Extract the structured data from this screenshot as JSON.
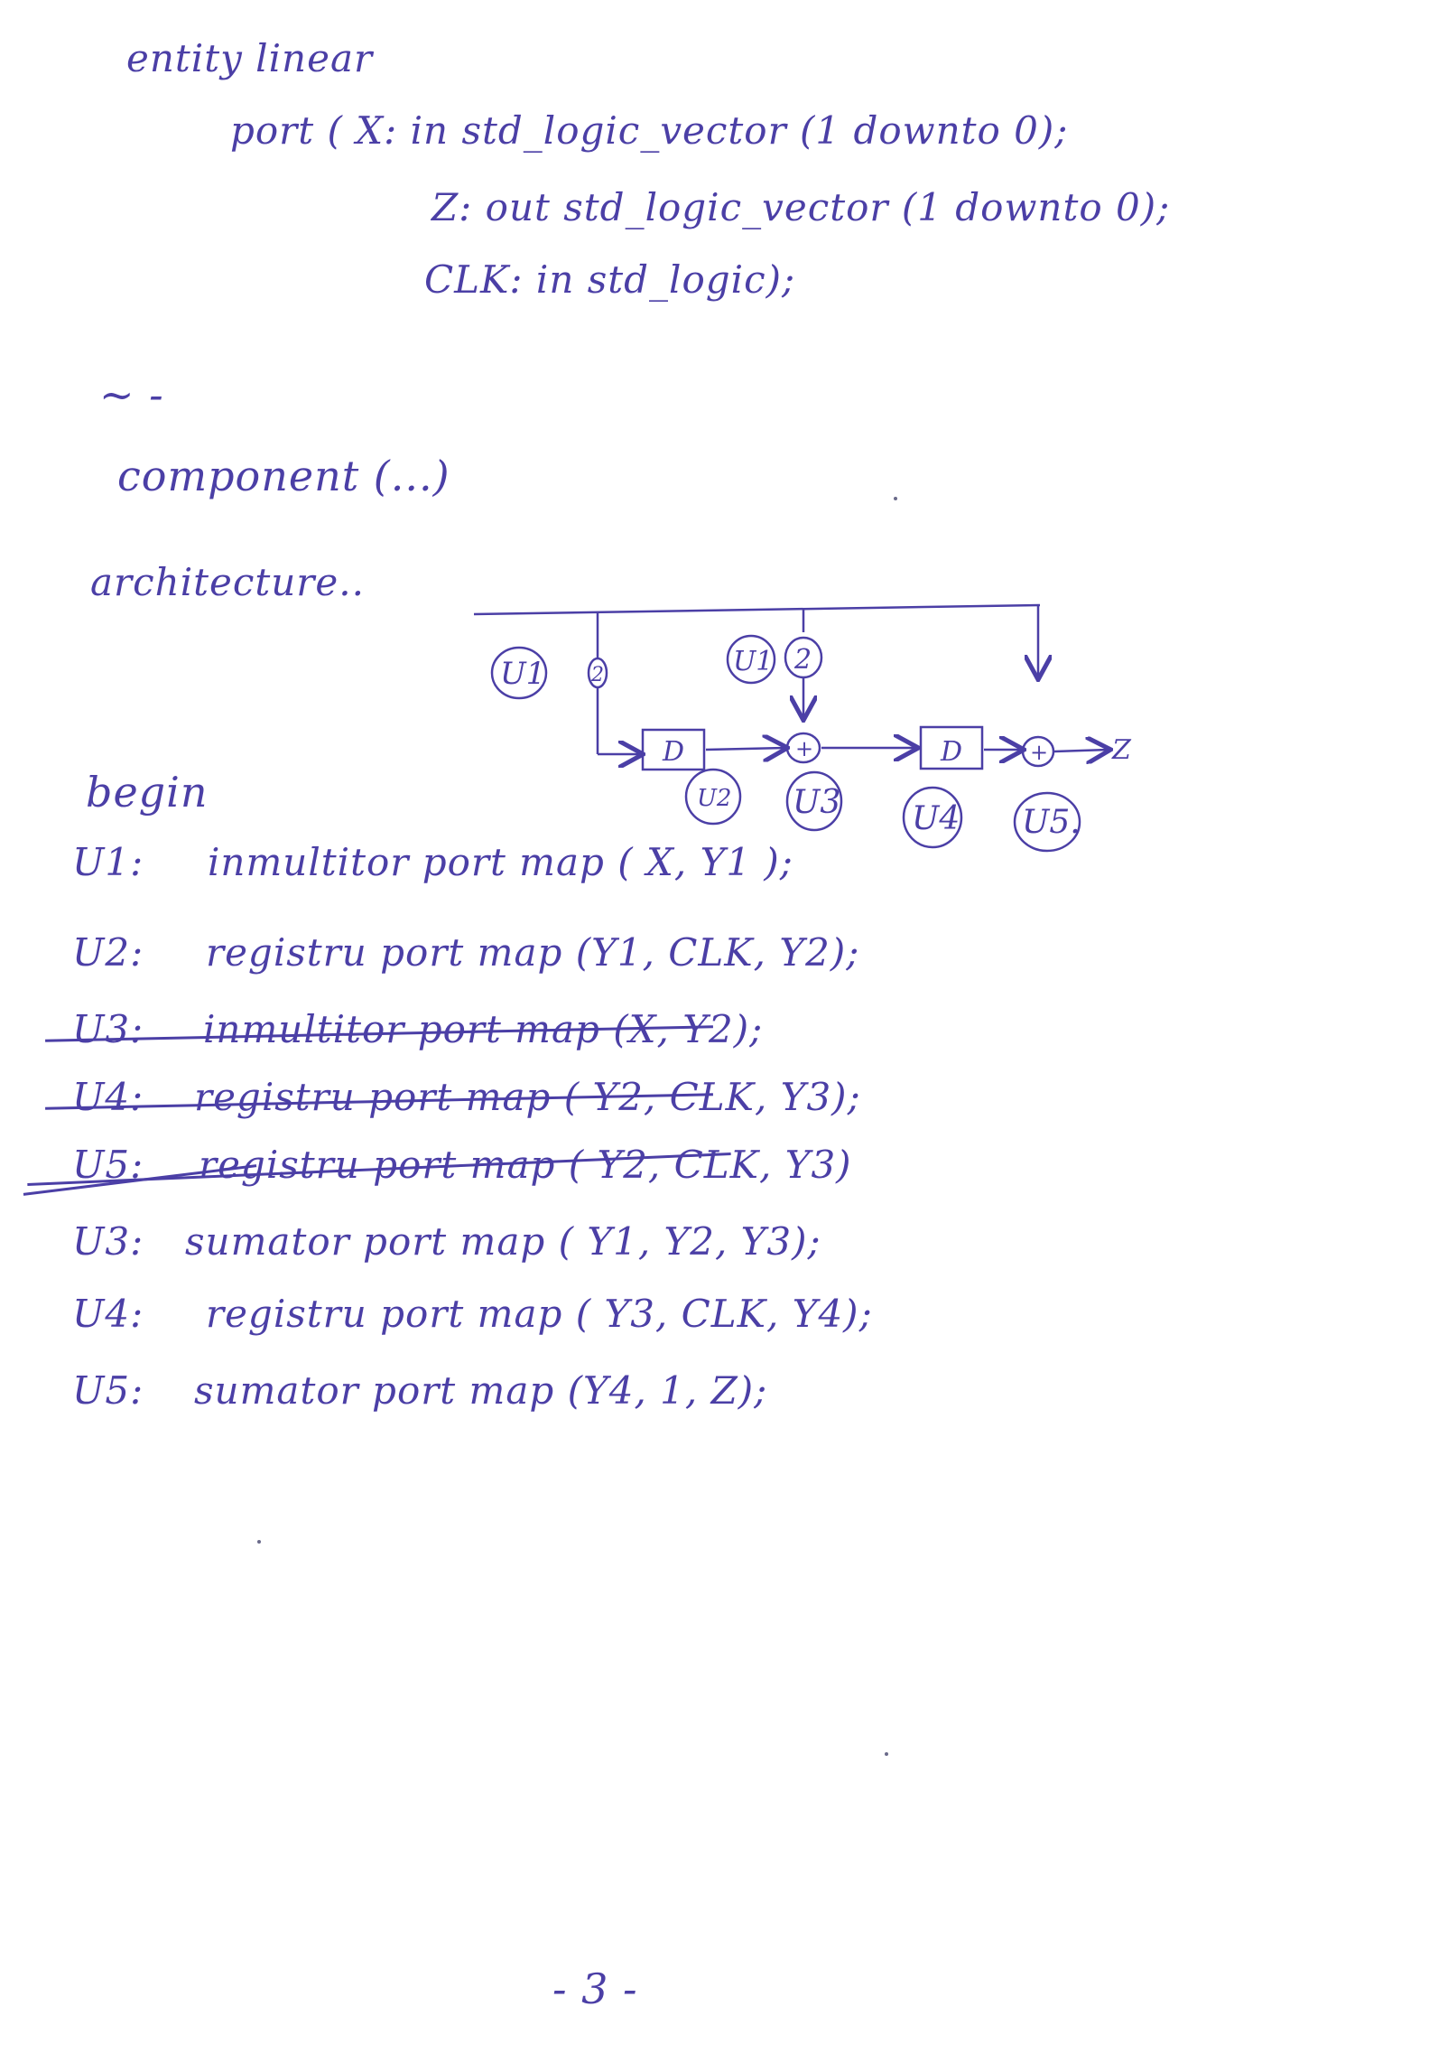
{
  "entity": {
    "line1": "entity linear",
    "port_x": "port ( X: in std_logic_vector (1 downto 0);",
    "port_z": "Z: out std_logic_vector (1 downto 0);",
    "port_clk": "CLK: in std_logic);"
  },
  "dashes": "~ -",
  "component": "component (...)",
  "architecture": "architecture..",
  "begin": "begin",
  "statements": [
    {
      "label": "U1:",
      "text": "inmultitor port map ( X, Y1 );",
      "struck": false
    },
    {
      "label": "U2:",
      "text": "registru port map (Y1, CLK, Y2);",
      "struck": false
    },
    {
      "label": "U3:",
      "text": "inmultitor port map (X, Y2);",
      "struck": true
    },
    {
      "label": "U4:",
      "text": "registru port map ( Y2, CLK, Y3);",
      "struck": true
    },
    {
      "label": "U5:",
      "text": "registru port map ( Y2, CLK, Y3)",
      "struck": true
    },
    {
      "label": "U3:",
      "text": "sumator port map ( Y1, Y2, Y3);",
      "struck": false
    },
    {
      "label": "U4:",
      "text": "registru port map ( Y3, CLK, Y4);",
      "struck": false
    },
    {
      "label": "U5:",
      "text": "sumator port map (Y4, 1, Z);",
      "struck": false
    }
  ],
  "diagram": {
    "u1_label": "U1",
    "u1_mult": "2",
    "u1_alt_label": "U1",
    "mult2": "2",
    "reg_d1": "D",
    "reg_d2": "D",
    "adder1": "+",
    "adder2": "+",
    "u2_label": "U2",
    "u3_label": "U3",
    "u4_label": "U4",
    "u5_label": "U5.",
    "output": "Z"
  },
  "page_number": "- 3 -"
}
